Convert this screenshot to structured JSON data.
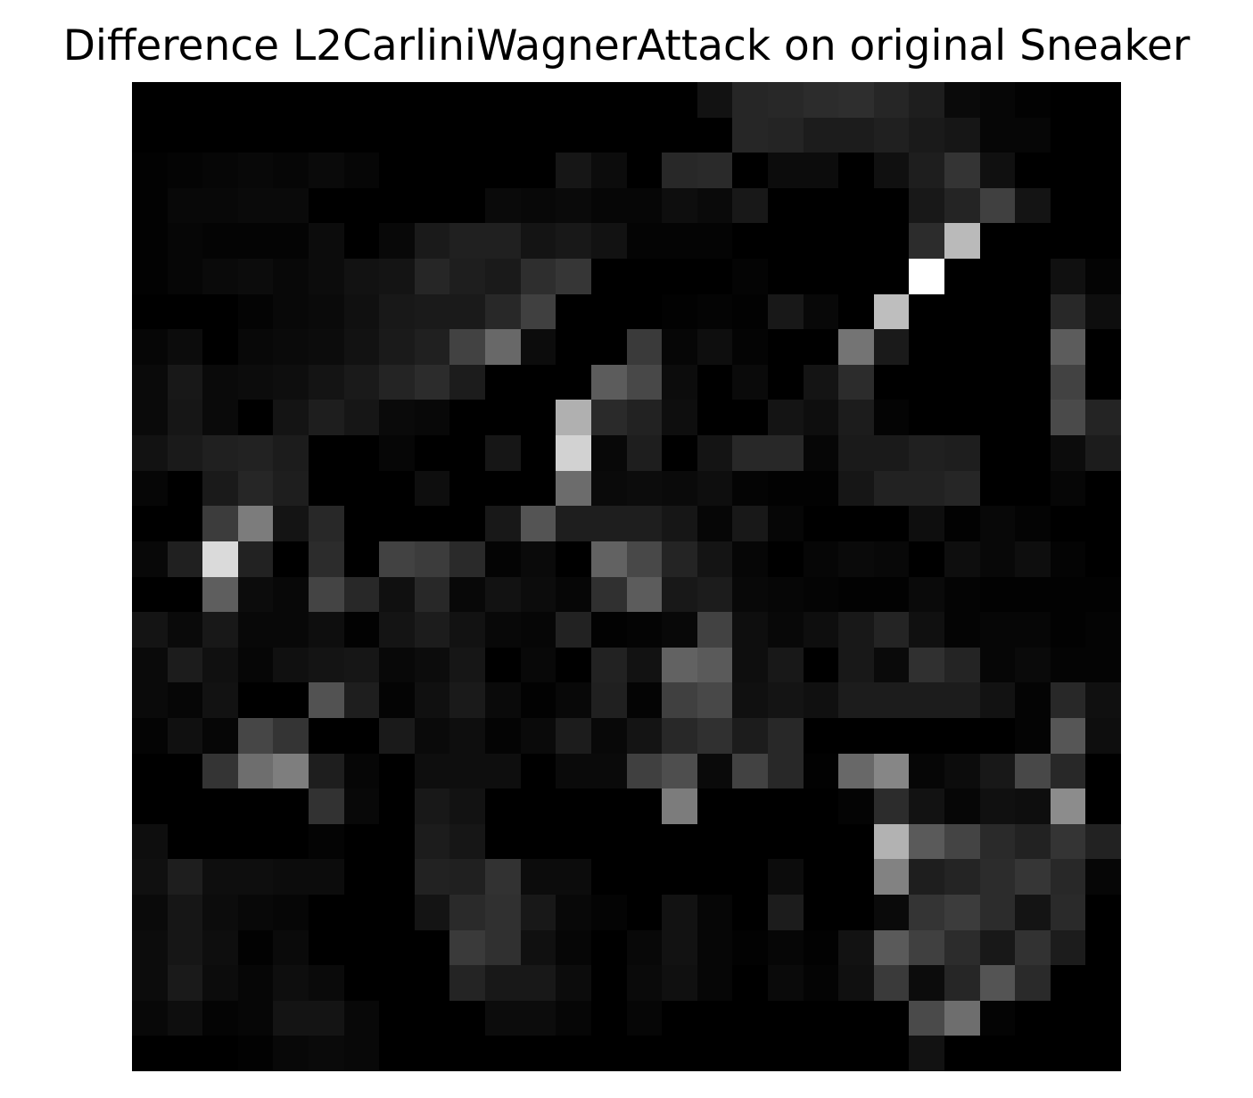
{
  "chart_data": {
    "type": "heatmap",
    "title": "Difference L2CarliniWagnerAttack on original Sneaker",
    "colormap": "gray",
    "axes_visible": false,
    "grid": false,
    "value_range": [
      0,
      255
    ],
    "rows": 28,
    "cols": 28,
    "values": [
      [
        0,
        0,
        0,
        0,
        0,
        0,
        0,
        0,
        0,
        0,
        0,
        0,
        0,
        0,
        0,
        0,
        18,
        38,
        40,
        44,
        46,
        38,
        30,
        10,
        6,
        2,
        0,
        0
      ],
      [
        0,
        0,
        0,
        0,
        0,
        0,
        0,
        0,
        0,
        0,
        0,
        0,
        0,
        0,
        0,
        0,
        0,
        38,
        36,
        28,
        28,
        32,
        26,
        22,
        6,
        6,
        0,
        0
      ],
      [
        2,
        4,
        6,
        8,
        6,
        10,
        6,
        0,
        0,
        0,
        0,
        0,
        22,
        12,
        0,
        40,
        42,
        0,
        12,
        12,
        0,
        16,
        30,
        52,
        16,
        0,
        0,
        0
      ],
      [
        2,
        8,
        8,
        10,
        10,
        0,
        0,
        0,
        0,
        0,
        10,
        8,
        10,
        6,
        6,
        14,
        10,
        24,
        0,
        0,
        0,
        0,
        24,
        36,
        64,
        20,
        0,
        0
      ],
      [
        2,
        6,
        4,
        4,
        4,
        12,
        0,
        8,
        26,
        32,
        32,
        20,
        24,
        18,
        4,
        4,
        4,
        0,
        0,
        0,
        0,
        0,
        44,
        186,
        0,
        0,
        0,
        0
      ],
      [
        2,
        6,
        10,
        12,
        8,
        12,
        18,
        20,
        38,
        30,
        26,
        46,
        54,
        0,
        0,
        0,
        0,
        4,
        0,
        0,
        0,
        0,
        255,
        0,
        0,
        0,
        16,
        4
      ],
      [
        0,
        0,
        0,
        4,
        8,
        10,
        16,
        24,
        26,
        26,
        40,
        64,
        0,
        0,
        0,
        2,
        4,
        2,
        24,
        8,
        0,
        190,
        0,
        0,
        0,
        0,
        40,
        14
      ],
      [
        6,
        12,
        0,
        8,
        10,
        12,
        18,
        26,
        32,
        66,
        104,
        12,
        0,
        0,
        58,
        6,
        14,
        4,
        0,
        0,
        116,
        26,
        0,
        0,
        0,
        0,
        92,
        0
      ],
      [
        10,
        24,
        10,
        12,
        14,
        20,
        26,
        36,
        44,
        28,
        0,
        0,
        0,
        92,
        72,
        12,
        0,
        10,
        0,
        20,
        44,
        0,
        0,
        0,
        0,
        0,
        66,
        0
      ],
      [
        10,
        22,
        10,
        0,
        20,
        30,
        22,
        10,
        8,
        0,
        0,
        0,
        176,
        42,
        34,
        14,
        0,
        0,
        20,
        14,
        28,
        4,
        0,
        0,
        0,
        0,
        74,
        36
      ],
      [
        18,
        26,
        32,
        34,
        28,
        0,
        0,
        6,
        0,
        0,
        22,
        0,
        210,
        8,
        30,
        0,
        20,
        40,
        40,
        6,
        26,
        26,
        32,
        30,
        0,
        0,
        12,
        28
      ],
      [
        6,
        0,
        26,
        38,
        30,
        0,
        0,
        0,
        14,
        0,
        0,
        0,
        108,
        10,
        12,
        10,
        14,
        4,
        2,
        2,
        22,
        34,
        34,
        38,
        0,
        0,
        6,
        0
      ],
      [
        0,
        0,
        60,
        124,
        20,
        40,
        0,
        0,
        0,
        0,
        24,
        84,
        30,
        30,
        30,
        22,
        6,
        24,
        6,
        0,
        0,
        0,
        14,
        2,
        8,
        4,
        0,
        0
      ],
      [
        8,
        32,
        218,
        34,
        0,
        44,
        0,
        66,
        60,
        42,
        4,
        10,
        0,
        98,
        72,
        36,
        20,
        6,
        0,
        6,
        10,
        8,
        0,
        14,
        8,
        14,
        4,
        0
      ],
      [
        0,
        0,
        94,
        12,
        8,
        68,
        40,
        16,
        40,
        8,
        18,
        12,
        6,
        48,
        92,
        24,
        28,
        8,
        6,
        4,
        2,
        2,
        10,
        4,
        2,
        2,
        2,
        2
      ],
      [
        20,
        10,
        24,
        8,
        8,
        14,
        2,
        20,
        28,
        18,
        8,
        6,
        34,
        2,
        4,
        8,
        66,
        14,
        8,
        14,
        24,
        36,
        16,
        4,
        6,
        6,
        2,
        4
      ],
      [
        10,
        28,
        16,
        6,
        16,
        20,
        22,
        8,
        12,
        22,
        0,
        8,
        0,
        34,
        18,
        98,
        90,
        14,
        24,
        0,
        24,
        10,
        48,
        36,
        6,
        10,
        4,
        4
      ],
      [
        10,
        6,
        18,
        0,
        0,
        82,
        30,
        4,
        16,
        26,
        10,
        2,
        8,
        32,
        4,
        64,
        72,
        16,
        20,
        16,
        28,
        28,
        28,
        28,
        18,
        4,
        40,
        16
      ],
      [
        4,
        16,
        6,
        70,
        52,
        0,
        0,
        26,
        10,
        14,
        4,
        10,
        28,
        8,
        20,
        40,
        48,
        28,
        40,
        0,
        0,
        0,
        0,
        0,
        0,
        4,
        86,
        14
      ],
      [
        0,
        0,
        52,
        110,
        126,
        30,
        6,
        0,
        14,
        14,
        14,
        0,
        10,
        10,
        64,
        78,
        10,
        66,
        40,
        2,
        104,
        134,
        6,
        12,
        24,
        72,
        40,
        0
      ],
      [
        0,
        0,
        0,
        0,
        0,
        50,
        8,
        0,
        24,
        18,
        0,
        0,
        0,
        0,
        0,
        124,
        0,
        0,
        0,
        0,
        4,
        44,
        18,
        6,
        16,
        14,
        140,
        0
      ],
      [
        14,
        0,
        0,
        0,
        0,
        4,
        0,
        0,
        28,
        22,
        0,
        0,
        0,
        0,
        0,
        0,
        0,
        0,
        0,
        0,
        0,
        178,
        90,
        68,
        42,
        34,
        52,
        34
      ],
      [
        16,
        30,
        14,
        14,
        12,
        12,
        0,
        0,
        34,
        32,
        50,
        12,
        12,
        0,
        0,
        0,
        0,
        0,
        12,
        0,
        0,
        130,
        30,
        36,
        44,
        54,
        40,
        6
      ],
      [
        10,
        22,
        12,
        8,
        6,
        0,
        0,
        0,
        20,
        42,
        48,
        24,
        8,
        4,
        0,
        18,
        6,
        0,
        28,
        0,
        0,
        10,
        52,
        60,
        44,
        20,
        42,
        0
      ],
      [
        12,
        22,
        14,
        2,
        10,
        0,
        0,
        0,
        0,
        58,
        48,
        16,
        6,
        0,
        8,
        18,
        6,
        2,
        6,
        2,
        18,
        90,
        64,
        44,
        24,
        50,
        28,
        0
      ],
      [
        12,
        26,
        12,
        6,
        14,
        10,
        0,
        0,
        0,
        36,
        24,
        24,
        12,
        0,
        10,
        16,
        6,
        0,
        10,
        4,
        16,
        58,
        12,
        38,
        84,
        42,
        0,
        0
      ],
      [
        8,
        14,
        4,
        6,
        20,
        20,
        8,
        0,
        0,
        0,
        12,
        12,
        6,
        0,
        6,
        0,
        0,
        0,
        0,
        0,
        0,
        0,
        74,
        110,
        4,
        0,
        0,
        0
      ],
      [
        0,
        0,
        0,
        2,
        8,
        10,
        8,
        0,
        0,
        0,
        0,
        0,
        0,
        0,
        0,
        0,
        0,
        0,
        0,
        0,
        0,
        0,
        18,
        0,
        0,
        0,
        0,
        0
      ]
    ]
  }
}
